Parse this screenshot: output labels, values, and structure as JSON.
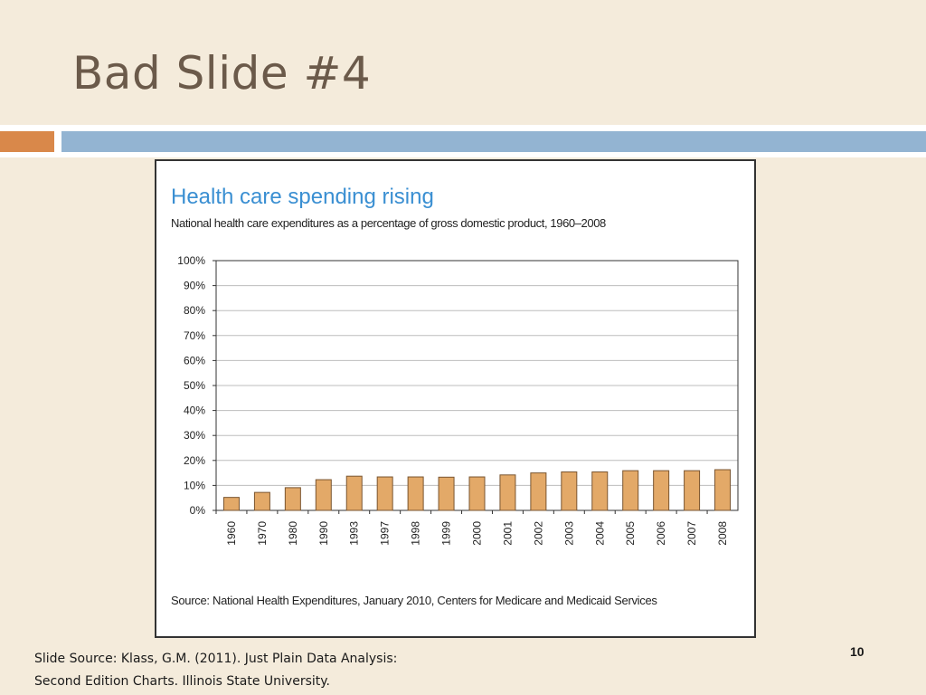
{
  "slide": {
    "title": "Bad Slide #4",
    "source_line1": "Slide Source: Klass, G.M. (2011). Just Plain Data Analysis:",
    "source_line2": "Second Edition Charts. Illinois State University.",
    "page_number": "10"
  },
  "colors": {
    "background": "#f4ebdb",
    "accent_orange": "#d9884a",
    "accent_blue": "#93b4d2",
    "bar_fill": "#e3a968",
    "bar_stroke": "#7a5530",
    "chart_title": "#3a8fd2"
  },
  "chart_data": {
    "type": "bar",
    "title": "Health care spending rising",
    "subtitle": "National health care expenditures as a percentage of gross domestic product, 1960–2008",
    "source": "Source: National Health Expenditures, January 2010, Centers for Medicare and Medicaid Services",
    "categories": [
      "1960",
      "1970",
      "1980",
      "1990",
      "1993",
      "1997",
      "1998",
      "1999",
      "2000",
      "2001",
      "2002",
      "2003",
      "2004",
      "2005",
      "2006",
      "2007",
      "2008"
    ],
    "values": [
      5.2,
      7.2,
      9.1,
      12.3,
      13.7,
      13.4,
      13.4,
      13.3,
      13.4,
      14.2,
      15.0,
      15.4,
      15.4,
      15.9,
      15.9,
      15.9,
      16.3
    ],
    "ylim": [
      0,
      100
    ],
    "yticks": [
      "0%",
      "10%",
      "20%",
      "30%",
      "40%",
      "50%",
      "60%",
      "70%",
      "80%",
      "90%",
      "100%"
    ],
    "xlabel": "",
    "ylabel": "",
    "grid": true,
    "legend": "none"
  }
}
